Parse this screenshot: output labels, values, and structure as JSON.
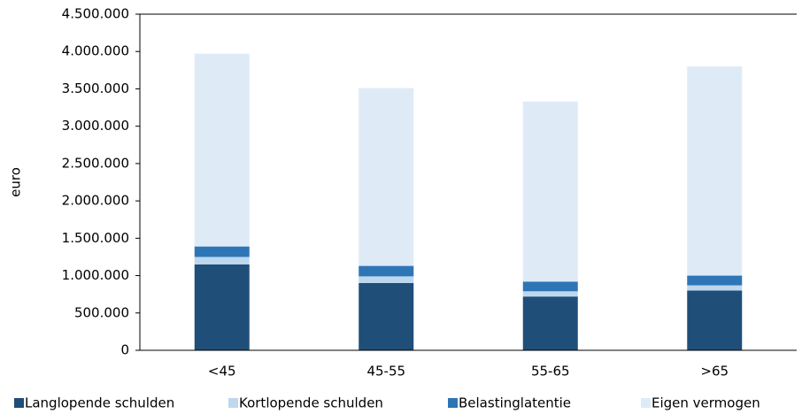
{
  "chart_data": {
    "type": "stacked-bar",
    "ylabel": "euro",
    "categories": [
      "<45",
      "45-55",
      "55-65",
      ">65"
    ],
    "series": [
      {
        "name": "Langlopende schulden",
        "color": "#1f4e79",
        "values": [
          1150000,
          900000,
          720000,
          800000
        ]
      },
      {
        "name": "Kortlopende schulden",
        "color": "#bdd7ee",
        "values": [
          100000,
          90000,
          70000,
          70000
        ]
      },
      {
        "name": "Belastinglatentie",
        "color": "#2e75b6",
        "values": [
          140000,
          140000,
          130000,
          130000
        ]
      },
      {
        "name": "Eigen vermogen",
        "color": "#deebf7",
        "values": [
          2580000,
          2380000,
          2410000,
          2800000
        ]
      }
    ],
    "ylim": [
      0,
      4500000
    ],
    "yticks": [
      0,
      {
        "value": 500000,
        "label": "500.000"
      },
      {
        "value": 1000000,
        "label": "1.000.000"
      },
      {
        "value": 1500000,
        "label": "1.500.000"
      },
      {
        "value": 2000000,
        "label": "2.000.000"
      },
      {
        "value": 2500000,
        "label": "2.500.000"
      },
      {
        "value": 3000000,
        "label": "3.000.000"
      },
      {
        "value": 3500000,
        "label": "3.500.000"
      },
      {
        "value": 4000000,
        "label": "4.000.000"
      },
      {
        "value": 4500000,
        "label": "4.500.000"
      }
    ],
    "legend": "bottom"
  }
}
